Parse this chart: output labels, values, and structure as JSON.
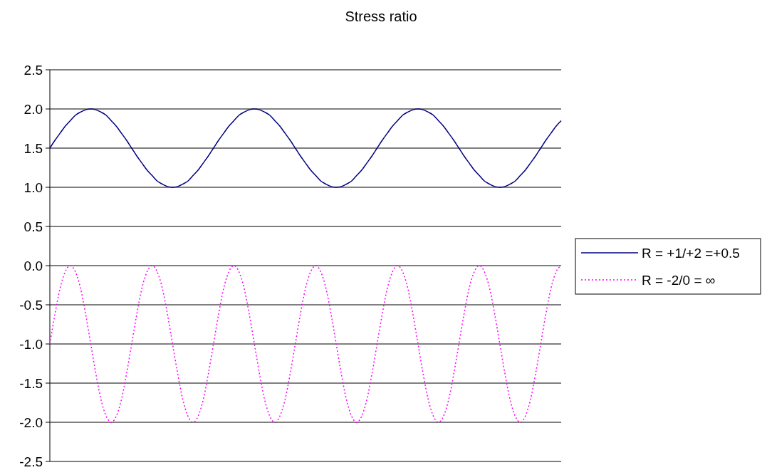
{
  "chart_data": {
    "type": "line",
    "title": "Stress ratio",
    "categories": [
      null,
      null,
      null,
      null,
      null,
      null,
      null,
      null,
      null,
      null,
      null,
      null,
      null,
      null,
      null,
      null,
      null,
      null,
      null,
      null,
      null,
      null,
      null,
      null,
      null,
      null,
      null,
      null,
      null,
      null,
      null,
      null,
      null,
      null,
      null,
      null,
      null,
      null,
      null,
      null,
      null,
      null,
      null,
      null,
      null,
      null,
      null,
      null,
      null,
      null,
      null,
      null,
      null,
      null,
      null,
      null,
      null,
      null,
      null,
      null,
      null,
      null,
      null,
      null,
      null,
      null,
      null,
      null,
      null,
      null,
      null,
      null,
      null,
      null,
      null,
      null,
      null,
      null,
      null,
      null,
      null,
      null,
      null,
      null,
      null,
      null,
      null,
      null,
      null,
      null,
      null,
      null,
      null,
      null,
      null,
      null,
      null,
      null,
      null,
      null,
      null
    ],
    "series": [
      {
        "name": "R = +1/+2 =+0.5",
        "color": "#000080",
        "line_style": "solid",
        "values": [
          1.5,
          1.6,
          1.69,
          1.78,
          1.85,
          1.92,
          1.96,
          1.99,
          2.0,
          1.99,
          1.96,
          1.92,
          1.85,
          1.78,
          1.69,
          1.6,
          1.5,
          1.4,
          1.31,
          1.22,
          1.15,
          1.08,
          1.04,
          1.01,
          1.0,
          1.01,
          1.04,
          1.08,
          1.15,
          1.22,
          1.31,
          1.4,
          1.5,
          1.6,
          1.69,
          1.78,
          1.85,
          1.92,
          1.96,
          1.99,
          2.0,
          1.99,
          1.96,
          1.92,
          1.85,
          1.78,
          1.69,
          1.6,
          1.5,
          1.4,
          1.31,
          1.22,
          1.15,
          1.08,
          1.04,
          1.01,
          1.0,
          1.01,
          1.04,
          1.08,
          1.15,
          1.22,
          1.31,
          1.4,
          1.5,
          1.6,
          1.69,
          1.78,
          1.85,
          1.92,
          1.96,
          1.99,
          2.0,
          1.99,
          1.96,
          1.92,
          1.85,
          1.78,
          1.69,
          1.6,
          1.5,
          1.4,
          1.31,
          1.22,
          1.15,
          1.08,
          1.04,
          1.01,
          1.0,
          1.01,
          1.04,
          1.08,
          1.15,
          1.22,
          1.31,
          1.4,
          1.5,
          1.6,
          1.69,
          1.78,
          1.85
        ]
      },
      {
        "name": "R = -2/0 = ∞",
        "color": "#ff00ff",
        "line_style": "dotted",
        "values": [
          -1,
          -0.62,
          -0.29,
          -0.08,
          0,
          -0.08,
          -0.29,
          -0.62,
          -1,
          -1.38,
          -1.71,
          -1.92,
          -2,
          -1.92,
          -1.71,
          -1.38,
          -1,
          -0.62,
          -0.29,
          -0.08,
          0,
          -0.08,
          -0.29,
          -0.62,
          -1,
          -1.38,
          -1.71,
          -1.92,
          -2,
          -1.92,
          -1.71,
          -1.38,
          -1,
          -0.62,
          -0.29,
          -0.08,
          0,
          -0.08,
          -0.29,
          -0.62,
          -1,
          -1.38,
          -1.71,
          -1.92,
          -2,
          -1.92,
          -1.71,
          -1.38,
          -1,
          -0.62,
          -0.29,
          -0.08,
          0,
          -0.08,
          -0.29,
          -0.62,
          -1,
          -1.38,
          -1.71,
          -1.92,
          -2,
          -1.92,
          -1.71,
          -1.38,
          -1,
          -0.62,
          -0.29,
          -0.08,
          0,
          -0.08,
          -0.29,
          -0.62,
          -1,
          -1.38,
          -1.71,
          -1.92,
          -2,
          -1.92,
          -1.71,
          -1.38,
          -1,
          -0.62,
          -0.29,
          -0.08,
          0,
          -0.08,
          -0.29,
          -0.62,
          -1,
          -1.38,
          -1.71,
          -1.92,
          -2,
          -1.92,
          -1.71,
          -1.38,
          -1,
          -0.62,
          -0.29,
          -0.08,
          0
        ]
      }
    ],
    "ylim": [
      -2.5,
      2.5
    ],
    "yticks": [
      {
        "value": -2.5,
        "label": "-2.5"
      },
      {
        "value": -2,
        "label": "-2.0"
      },
      {
        "value": -1.5,
        "label": "-1.5"
      },
      {
        "value": -1,
        "label": "-1.0"
      },
      {
        "value": -0.5,
        "label": "-0.5"
      },
      {
        "value": 0,
        "label": "0.0"
      },
      {
        "value": 0.5,
        "label": "0.5"
      },
      {
        "value": 1,
        "label": "1.0"
      },
      {
        "value": 1.5,
        "label": "1.5"
      },
      {
        "value": 2,
        "label": "2.0"
      },
      {
        "value": 2.5,
        "label": "2.5"
      }
    ],
    "grid": "y",
    "legend": "right",
    "marker": "none"
  }
}
